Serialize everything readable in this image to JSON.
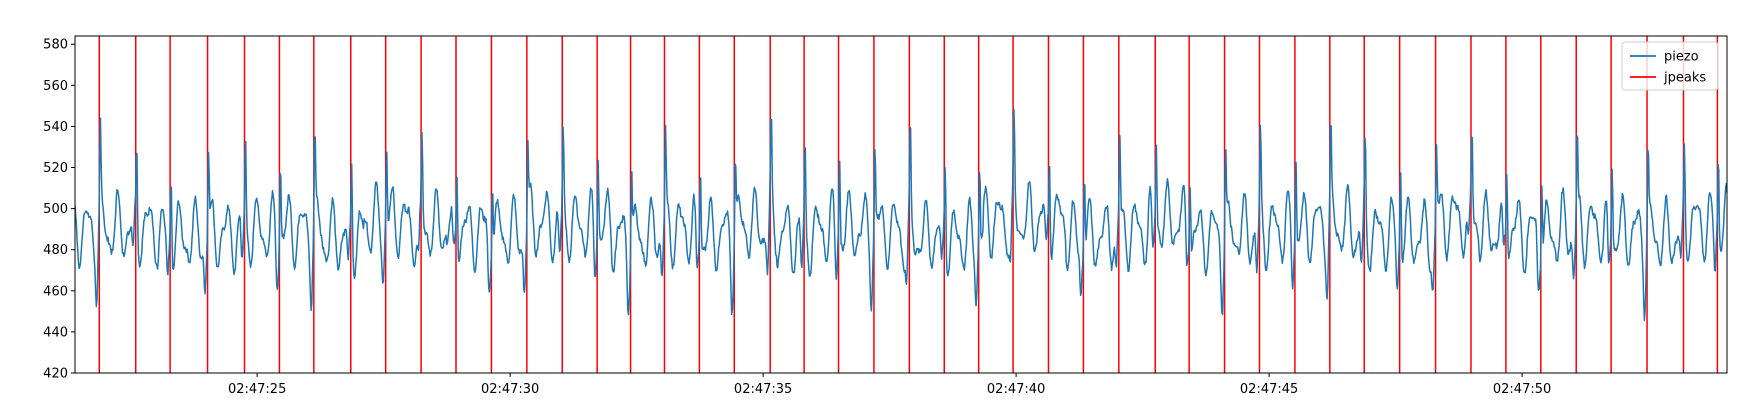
{
  "chart_data": {
    "type": "line",
    "title": "",
    "xlabel": "",
    "ylabel": "",
    "ylim": [
      420,
      584
    ],
    "xlim": [
      "02:47:21.40",
      "02:47:54.05"
    ],
    "yticks": [
      420,
      440,
      460,
      480,
      500,
      520,
      540,
      560,
      580
    ],
    "xticks": [
      "02:47:25",
      "02:47:30",
      "02:47:35",
      "02:47:40",
      "02:47:45",
      "02:47:50"
    ],
    "grid": false,
    "legend": {
      "placement": "top-right",
      "entries": [
        "piezo",
        "jpeaks"
      ]
    },
    "series": [
      {
        "name": "piezo",
        "type": "line",
        "color": "#1f77b4",
        "pattern": {
          "baseline_y": 490,
          "oscillation_amplitude": 13,
          "oscillation_period_s": 0.3,
          "beat_period_s": 0.7,
          "peak_offset_s": 0.02
        }
      },
      {
        "name": "jpeaks",
        "type": "vline",
        "color": "#ff0000",
        "x": [
          "02:47:21.88",
          "02:47:22.60",
          "02:47:23.28",
          "02:47:24.02",
          "02:47:24.75",
          "02:47:25.44",
          "02:47:26.12",
          "02:47:26.85",
          "02:47:27.54",
          "02:47:28.24",
          "02:47:28.93",
          "02:47:29.63",
          "02:47:30.33",
          "02:47:31.03",
          "02:47:31.72",
          "02:47:32.38",
          "02:47:33.05",
          "02:47:33.74",
          "02:47:34.43",
          "02:47:35.14",
          "02:47:35.81",
          "02:47:36.49",
          "02:47:37.19",
          "02:47:37.89",
          "02:47:38.58",
          "02:47:39.26",
          "02:47:39.94",
          "02:47:40.64",
          "02:47:41.33",
          "02:47:42.03",
          "02:47:42.75",
          "02:47:43.42",
          "02:47:44.12",
          "02:47:44.81",
          "02:47:45.51",
          "02:47:46.20",
          "02:47:46.88",
          "02:47:47.58",
          "02:47:48.29",
          "02:47:48.99",
          "02:47:49.68",
          "02:47:50.37",
          "02:47:51.07",
          "02:47:51.76",
          "02:47:52.47",
          "02:47:53.19",
          "02:47:53.86"
        ]
      }
    ]
  }
}
